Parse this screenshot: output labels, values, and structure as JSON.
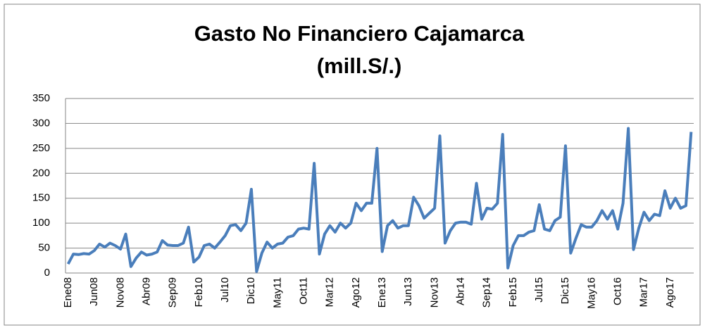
{
  "chart_data": {
    "type": "line",
    "title": [
      "Gasto No Financiero Cajamarca",
      "(mill.S/.)"
    ],
    "categories": [
      "Ene08",
      null,
      null,
      null,
      null,
      "Jun08",
      null,
      null,
      null,
      null,
      "Nov08",
      null,
      null,
      null,
      null,
      "Abr09",
      null,
      null,
      null,
      null,
      "Sep09",
      null,
      null,
      null,
      null,
      "Feb10",
      null,
      null,
      null,
      null,
      "Jul10",
      null,
      null,
      null,
      null,
      "Dic10",
      null,
      null,
      null,
      null,
      "May11",
      null,
      null,
      null,
      null,
      "Oct11",
      null,
      null,
      null,
      null,
      "Mar12",
      null,
      null,
      null,
      null,
      "Ago12",
      null,
      null,
      null,
      null,
      "Ene13",
      null,
      null,
      null,
      null,
      "Jun13",
      null,
      null,
      null,
      null,
      "Nov13",
      null,
      null,
      null,
      null,
      "Abr14",
      null,
      null,
      null,
      null,
      "Sep14",
      null,
      null,
      null,
      null,
      "Feb15",
      null,
      null,
      null,
      null,
      "Jul15",
      null,
      null,
      null,
      null,
      "Dic15",
      null,
      null,
      null,
      null,
      "May16",
      null,
      null,
      null,
      null,
      "Oct16",
      null,
      null,
      null,
      null,
      "Mar17",
      null,
      null,
      null,
      null,
      "Ago17",
      null,
      null,
      null,
      null
    ],
    "values": [
      18,
      38,
      37,
      39,
      38,
      45,
      58,
      52,
      60,
      55,
      48,
      78,
      13,
      30,
      42,
      36,
      38,
      42,
      65,
      56,
      55,
      55,
      60,
      92,
      22,
      32,
      55,
      58,
      50,
      62,
      75,
      95,
      97,
      85,
      100,
      168,
      3,
      40,
      62,
      50,
      58,
      60,
      72,
      75,
      88,
      90,
      88,
      220,
      38,
      78,
      95,
      82,
      100,
      90,
      100,
      140,
      125,
      140,
      140,
      250,
      43,
      95,
      105,
      90,
      95,
      95,
      152,
      135,
      110,
      120,
      130,
      275,
      60,
      85,
      100,
      102,
      102,
      98,
      180,
      108,
      130,
      128,
      140,
      278,
      10,
      55,
      75,
      75,
      82,
      85,
      137,
      88,
      85,
      105,
      112,
      255,
      40,
      70,
      97,
      92,
      92,
      105,
      125,
      108,
      125,
      88,
      140,
      290,
      47,
      90,
      122,
      105,
      118,
      115,
      165,
      130,
      150,
      130,
      135,
      283
    ],
    "color": "#4a7ebb",
    "ylim": [
      0,
      350
    ],
    "yticks": [
      0,
      50,
      100,
      150,
      200,
      250,
      300,
      350
    ],
    "grid": true
  }
}
